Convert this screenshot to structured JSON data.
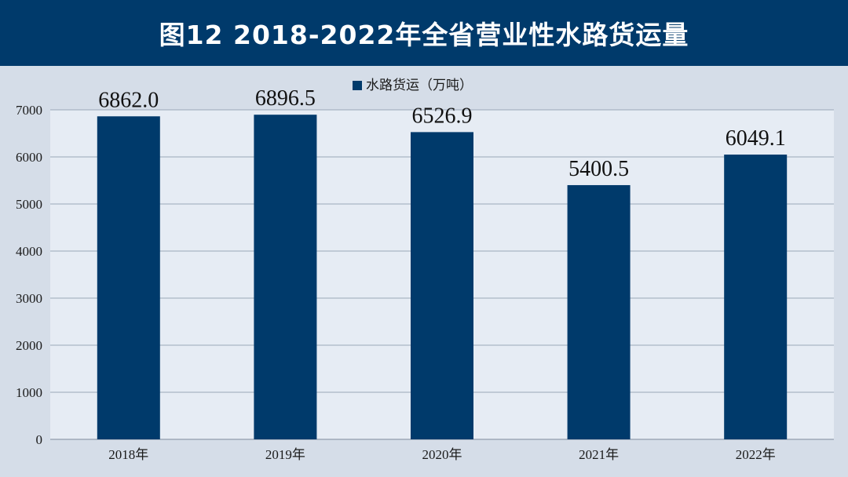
{
  "header": {
    "title": "图12  2018-2022年全省营业性水路货运量"
  },
  "colors": {
    "header_bg": "#003a6b",
    "bar": "#003a6b",
    "plot_bg": "#e6ecf4",
    "page_bg": "#d5dde8",
    "grid": "#9aa7b7"
  },
  "chart_data": {
    "type": "bar",
    "title": "图12  2018-2022年全省营业性水路货运量",
    "categories": [
      "2018年",
      "2019年",
      "2020年",
      "2021年",
      "2022年"
    ],
    "series": [
      {
        "name": "水路货运（万吨）",
        "values": [
          6862.0,
          6896.5,
          6526.9,
          5400.5,
          6049.1
        ],
        "value_labels": [
          "6862.0",
          "6896.5",
          "6526.9",
          "5400.5",
          "6049.1"
        ]
      }
    ],
    "yticks": [
      "0",
      "1000",
      "2000",
      "3000",
      "4000",
      "5000",
      "6000",
      "7000"
    ],
    "ylim": [
      0,
      7000
    ],
    "grid": true,
    "legend_position": "top-center"
  }
}
